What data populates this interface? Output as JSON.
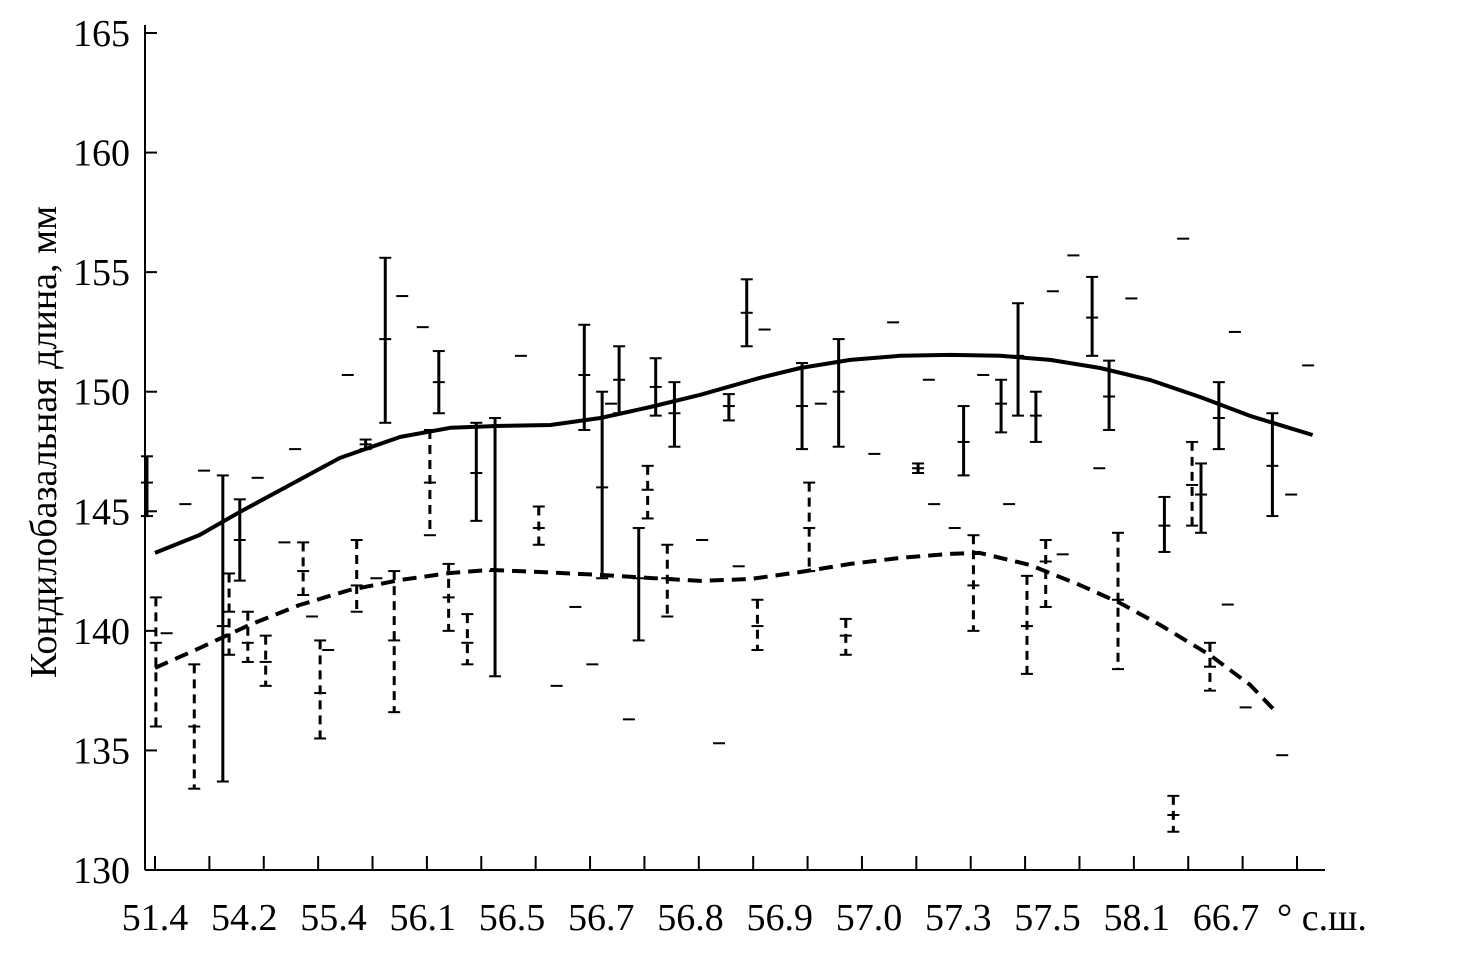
{
  "chart_data": {
    "type": "scatter",
    "ylabel": "Кондилобазальная длина, мм",
    "x_unit_label": "° с.ш.",
    "x_tick_labels": [
      "51.4",
      "54.2",
      "55.4",
      "56.1",
      "56.5",
      "56.7",
      "56.8",
      "56.9",
      "57.0",
      "57.3",
      "57.5",
      "58.1",
      "66.7"
    ],
    "ylim": [
      130,
      165
    ],
    "y_ticks": [
      130,
      135,
      140,
      145,
      150,
      155,
      160,
      165
    ],
    "grid": false,
    "colors": {
      "ink": "#000000"
    },
    "error_bars_solid": [
      {
        "x": -0.09,
        "low": 144.8,
        "mean": 146.2,
        "high": 147.3
      },
      {
        "x": 0.76,
        "low": 133.7,
        "mean": 140.2,
        "high": 146.5
      },
      {
        "x": 0.95,
        "low": 142.1,
        "mean": 143.8,
        "high": 145.5
      },
      {
        "x": 2.36,
        "low": 147.6,
        "mean": 147.8,
        "high": 148.0
      },
      {
        "x": 2.58,
        "low": 148.7,
        "mean": 152.2,
        "high": 155.6
      },
      {
        "x": 3.18,
        "low": 149.1,
        "mean": 150.4,
        "high": 151.7
      },
      {
        "x": 3.6,
        "low": 144.6,
        "mean": 146.6,
        "high": 148.7
      },
      {
        "x": 3.81,
        "low": 138.1,
        "mean": 142.5,
        "high": 148.9
      },
      {
        "x": 4.81,
        "low": 148.4,
        "mean": 150.7,
        "high": 152.8
      },
      {
        "x": 5.01,
        "low": 142.2,
        "mean": 146.0,
        "high": 150.0
      },
      {
        "x": 5.2,
        "low": 149.1,
        "mean": 150.5,
        "high": 151.9
      },
      {
        "x": 5.42,
        "low": 139.6,
        "mean": 142.2,
        "high": 144.3
      },
      {
        "x": 5.61,
        "low": 149.0,
        "mean": 150.2,
        "high": 151.4
      },
      {
        "x": 5.82,
        "low": 147.7,
        "mean": 149.1,
        "high": 150.4
      },
      {
        "x": 6.43,
        "low": 148.8,
        "mean": 149.4,
        "high": 149.9
      },
      {
        "x": 6.63,
        "low": 151.9,
        "mean": 153.3,
        "high": 154.7
      },
      {
        "x": 7.25,
        "low": 147.6,
        "mean": 149.4,
        "high": 151.2
      },
      {
        "x": 7.66,
        "low": 147.7,
        "mean": 150.0,
        "high": 152.2
      },
      {
        "x": 9.06,
        "low": 146.5,
        "mean": 147.9,
        "high": 149.4
      },
      {
        "x": 9.48,
        "low": 148.3,
        "mean": 149.5,
        "high": 150.5
      },
      {
        "x": 9.67,
        "low": 149.0,
        "mean": 151.5,
        "high": 153.7
      },
      {
        "x": 9.87,
        "low": 147.9,
        "mean": 149.0,
        "high": 150.0
      },
      {
        "x": 10.5,
        "low": 151.5,
        "mean": 153.1,
        "high": 154.8
      },
      {
        "x": 10.69,
        "low": 148.4,
        "mean": 149.8,
        "high": 151.3
      },
      {
        "x": 11.31,
        "low": 143.3,
        "mean": 144.4,
        "high": 145.6
      },
      {
        "x": 11.72,
        "low": 144.1,
        "mean": 145.7,
        "high": 147.0
      },
      {
        "x": 11.92,
        "low": 147.6,
        "mean": 148.9,
        "high": 150.4
      },
      {
        "x": 12.52,
        "low": 144.8,
        "mean": 146.9,
        "high": 149.1
      }
    ],
    "error_bars_dashed": [
      {
        "x": 0.01,
        "low": 136.0,
        "mean": 139.5,
        "high": 141.4
      },
      {
        "x": 0.44,
        "low": 133.4,
        "mean": 136.0,
        "high": 138.6
      },
      {
        "x": 0.83,
        "low": 139.0,
        "mean": 140.8,
        "high": 142.4
      },
      {
        "x": 1.04,
        "low": 138.7,
        "mean": 139.5,
        "high": 140.8
      },
      {
        "x": 1.24,
        "low": 137.7,
        "mean": 138.7,
        "high": 139.8
      },
      {
        "x": 1.66,
        "low": 141.5,
        "mean": 142.5,
        "high": 143.7
      },
      {
        "x": 1.85,
        "low": 135.5,
        "mean": 137.4,
        "high": 139.6
      },
      {
        "x": 2.26,
        "low": 140.8,
        "mean": 141.9,
        "high": 143.8
      },
      {
        "x": 2.68,
        "low": 136.6,
        "mean": 139.6,
        "high": 142.5
      },
      {
        "x": 3.08,
        "low": 144.0,
        "mean": 146.2,
        "high": 148.4
      },
      {
        "x": 3.29,
        "low": 140.0,
        "mean": 141.4,
        "high": 142.8
      },
      {
        "x": 3.5,
        "low": 138.6,
        "mean": 139.5,
        "high": 140.7
      },
      {
        "x": 4.3,
        "low": 143.6,
        "mean": 144.3,
        "high": 145.2
      },
      {
        "x": 5.52,
        "low": 144.7,
        "mean": 145.9,
        "high": 146.9
      },
      {
        "x": 5.74,
        "low": 140.6,
        "mean": 142.2,
        "high": 143.6
      },
      {
        "x": 6.75,
        "low": 139.2,
        "mean": 140.2,
        "high": 141.3
      },
      {
        "x": 7.33,
        "low": 142.5,
        "mean": 144.3,
        "high": 146.2
      },
      {
        "x": 7.74,
        "low": 139.0,
        "mean": 139.8,
        "high": 140.5
      },
      {
        "x": 8.55,
        "low": 146.6,
        "mean": 146.8,
        "high": 147.0
      },
      {
        "x": 9.17,
        "low": 140.0,
        "mean": 141.9,
        "high": 144.0
      },
      {
        "x": 9.77,
        "low": 138.2,
        "mean": 140.2,
        "high": 142.3
      },
      {
        "x": 9.98,
        "low": 141.0,
        "mean": 142.9,
        "high": 143.8
      },
      {
        "x": 10.79,
        "low": 138.4,
        "mean": 141.3,
        "high": 144.1
      },
      {
        "x": 11.41,
        "low": 131.6,
        "mean": 132.3,
        "high": 133.1
      },
      {
        "x": 11.62,
        "low": 144.4,
        "mean": 146.1,
        "high": 147.9
      },
      {
        "x": 11.82,
        "low": 137.5,
        "mean": 138.5,
        "high": 139.5
      }
    ],
    "extreme_markers": [
      {
        "x": 0.34,
        "y": 145.3
      },
      {
        "x": 0.55,
        "y": 146.7
      },
      {
        "x": 1.15,
        "y": 146.4
      },
      {
        "x": 1.57,
        "y": 147.6
      },
      {
        "x": 2.16,
        "y": 150.7
      },
      {
        "x": 2.77,
        "y": 154.0
      },
      {
        "x": 3.0,
        "y": 152.7
      },
      {
        "x": 0.13,
        "y": 139.9
      },
      {
        "x": 1.45,
        "y": 143.7
      },
      {
        "x": 1.76,
        "y": 140.6
      },
      {
        "x": 1.94,
        "y": 139.2
      },
      {
        "x": 2.48,
        "y": 142.2
      },
      {
        "x": 4.1,
        "y": 151.5
      },
      {
        "x": 4.71,
        "y": 141.0
      },
      {
        "x": 4.9,
        "y": 138.6
      },
      {
        "x": 4.5,
        "y": 137.7
      },
      {
        "x": 5.11,
        "y": 149.5
      },
      {
        "x": 5.31,
        "y": 136.3
      },
      {
        "x": 6.13,
        "y": 143.8
      },
      {
        "x": 6.32,
        "y": 135.3
      },
      {
        "x": 6.54,
        "y": 142.7
      },
      {
        "x": 6.83,
        "y": 152.6
      },
      {
        "x": 8.27,
        "y": 152.9
      },
      {
        "x": 7.46,
        "y": 149.5
      },
      {
        "x": 8.67,
        "y": 150.5
      },
      {
        "x": 9.28,
        "y": 150.7
      },
      {
        "x": 8.06,
        "y": 147.4
      },
      {
        "x": 8.73,
        "y": 145.3
      },
      {
        "x": 9.57,
        "y": 145.3
      },
      {
        "x": 8.96,
        "y": 144.3
      },
      {
        "x": 10.06,
        "y": 154.2
      },
      {
        "x": 10.29,
        "y": 155.7
      },
      {
        "x": 11.52,
        "y": 156.4
      },
      {
        "x": 10.94,
        "y": 153.9
      },
      {
        "x": 12.1,
        "y": 152.5
      },
      {
        "x": 12.92,
        "y": 151.1
      },
      {
        "x": 10.58,
        "y": 146.8
      },
      {
        "x": 12.73,
        "y": 145.7
      },
      {
        "x": 10.17,
        "y": 143.2
      },
      {
        "x": 12.02,
        "y": 141.1
      },
      {
        "x": 12.22,
        "y": 136.8
      },
      {
        "x": 12.63,
        "y": 134.8
      }
    ],
    "trend_solid": {
      "x": [
        0,
        0.5,
        0.95,
        1.51,
        2.07,
        2.75,
        3.31,
        3.87,
        4.43,
        4.99,
        5.55,
        6.11,
        6.78,
        7.23,
        7.79,
        8.35,
        8.91,
        9.47,
        10.03,
        10.59,
        11.15,
        11.71,
        12.27,
        12.97
      ],
      "y": [
        143.26,
        144.01,
        144.97,
        146.1,
        147.23,
        148.11,
        148.49,
        148.57,
        148.61,
        148.9,
        149.36,
        149.87,
        150.58,
        150.99,
        151.33,
        151.5,
        151.54,
        151.5,
        151.33,
        150.99,
        150.49,
        149.78,
        148.99,
        148.19
      ]
    },
    "trend_dashed": {
      "x": [
        0,
        0.5,
        1.06,
        1.62,
        2.18,
        2.75,
        3.31,
        3.75,
        4.31,
        4.99,
        5.55,
        6.11,
        6.67,
        7.23,
        7.79,
        8.35,
        8.91,
        9.24,
        9.8,
        10.36,
        10.81,
        11.26,
        11.82,
        12.27,
        12.56
      ],
      "y": [
        138.45,
        139.28,
        140.25,
        141.08,
        141.71,
        142.13,
        142.42,
        142.55,
        142.46,
        142.34,
        142.21,
        142.09,
        142.17,
        142.46,
        142.8,
        143.05,
        143.22,
        143.26,
        142.76,
        141.92,
        141.17,
        140.25,
        138.99,
        137.74,
        136.61
      ]
    }
  }
}
